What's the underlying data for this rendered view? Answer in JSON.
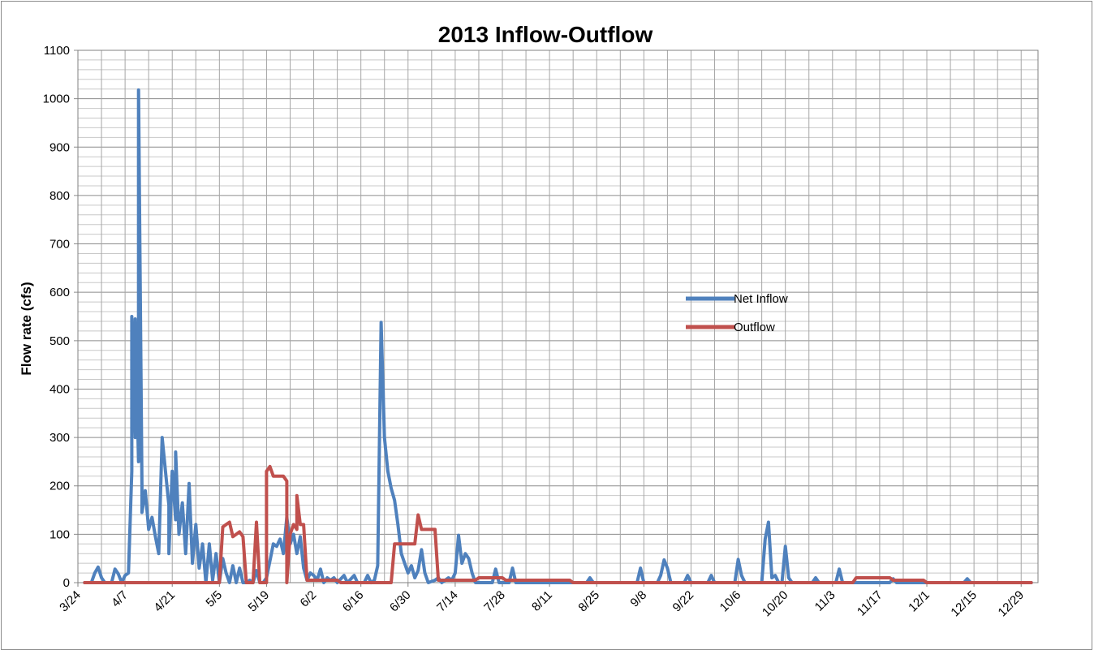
{
  "chart_data": {
    "type": "line",
    "title": "2013 Inflow-Outflow",
    "ylabel": "Flow rate (cfs)",
    "xlabel": "",
    "ylim": [
      0,
      1100
    ],
    "ytick_step": 100,
    "y_minor_step": 20,
    "xlim": [
      "2013-03-24",
      "2014-01-03"
    ],
    "x_ticks": [
      "3/24",
      "4/7",
      "4/21",
      "5/5",
      "5/19",
      "6/2",
      "6/16",
      "6/30",
      "7/14",
      "7/28",
      "8/11",
      "8/25",
      "9/8",
      "9/22",
      "10/6",
      "10/20",
      "11/3",
      "11/17",
      "12/1",
      "12/15",
      "12/29"
    ],
    "x_tick_dates": [
      "2013-03-24",
      "2013-04-07",
      "2013-04-21",
      "2013-05-05",
      "2013-05-19",
      "2013-06-02",
      "2013-06-16",
      "2013-06-30",
      "2013-07-14",
      "2013-07-28",
      "2013-08-11",
      "2013-08-25",
      "2013-09-08",
      "2013-09-22",
      "2013-10-06",
      "2013-10-20",
      "2013-11-03",
      "2013-11-17",
      "2013-12-01",
      "2013-12-15",
      "2013-12-29"
    ],
    "grid": true,
    "legend_position": "center-right",
    "series": [
      {
        "name": "Net Inflow",
        "color": "#4f81bd",
        "points": [
          [
            "2013-03-26",
            0
          ],
          [
            "2013-03-28",
            0
          ],
          [
            "2013-03-29",
            20
          ],
          [
            "2013-03-30",
            32
          ],
          [
            "2013-03-31",
            10
          ],
          [
            "2013-04-01",
            0
          ],
          [
            "2013-04-03",
            0
          ],
          [
            "2013-04-04",
            28
          ],
          [
            "2013-04-05",
            18
          ],
          [
            "2013-04-06",
            0
          ],
          [
            "2013-04-07",
            15
          ],
          [
            "2013-04-08",
            20
          ],
          [
            "2013-04-09",
            230
          ],
          [
            "2013-04-09",
            550
          ],
          [
            "2013-04-10",
            300
          ],
          [
            "2013-04-10",
            545
          ],
          [
            "2013-04-11",
            250
          ],
          [
            "2013-04-11",
            1018
          ],
          [
            "2013-04-12",
            200
          ],
          [
            "2013-04-12",
            145
          ],
          [
            "2013-04-13",
            190
          ],
          [
            "2013-04-14",
            110
          ],
          [
            "2013-04-15",
            135
          ],
          [
            "2013-04-16",
            95
          ],
          [
            "2013-04-17",
            60
          ],
          [
            "2013-04-18",
            300
          ],
          [
            "2013-04-19",
            230
          ],
          [
            "2013-04-20",
            160
          ],
          [
            "2013-04-20",
            60
          ],
          [
            "2013-04-21",
            230
          ],
          [
            "2013-04-22",
            130
          ],
          [
            "2013-04-22",
            270
          ],
          [
            "2013-04-23",
            100
          ],
          [
            "2013-04-24",
            165
          ],
          [
            "2013-04-25",
            60
          ],
          [
            "2013-04-26",
            205
          ],
          [
            "2013-04-27",
            40
          ],
          [
            "2013-04-28",
            120
          ],
          [
            "2013-04-29",
            30
          ],
          [
            "2013-04-30",
            80
          ],
          [
            "2013-05-01",
            0
          ],
          [
            "2013-05-02",
            80
          ],
          [
            "2013-05-03",
            5
          ],
          [
            "2013-05-04",
            60
          ],
          [
            "2013-05-05",
            0
          ],
          [
            "2013-05-06",
            50
          ],
          [
            "2013-05-07",
            20
          ],
          [
            "2013-05-08",
            0
          ],
          [
            "2013-05-09",
            35
          ],
          [
            "2013-05-10",
            0
          ],
          [
            "2013-05-11",
            30
          ],
          [
            "2013-05-12",
            0
          ],
          [
            "2013-05-13",
            0
          ],
          [
            "2013-05-14",
            5
          ],
          [
            "2013-05-15",
            0
          ],
          [
            "2013-05-16",
            25
          ],
          [
            "2013-05-17",
            0
          ],
          [
            "2013-05-18",
            0
          ],
          [
            "2013-05-19",
            10
          ],
          [
            "2013-05-20",
            45
          ],
          [
            "2013-05-21",
            80
          ],
          [
            "2013-05-22",
            75
          ],
          [
            "2013-05-23",
            90
          ],
          [
            "2013-05-24",
            60
          ],
          [
            "2013-05-25",
            135
          ],
          [
            "2013-05-26",
            80
          ],
          [
            "2013-05-27",
            100
          ],
          [
            "2013-05-28",
            60
          ],
          [
            "2013-05-29",
            95
          ],
          [
            "2013-05-30",
            30
          ],
          [
            "2013-05-31",
            5
          ],
          [
            "2013-06-01",
            20
          ],
          [
            "2013-06-02",
            15
          ],
          [
            "2013-06-03",
            5
          ],
          [
            "2013-06-04",
            28
          ],
          [
            "2013-06-05",
            0
          ],
          [
            "2013-06-06",
            10
          ],
          [
            "2013-06-07",
            5
          ],
          [
            "2013-06-08",
            10
          ],
          [
            "2013-06-09",
            0
          ],
          [
            "2013-06-11",
            15
          ],
          [
            "2013-06-12",
            0
          ],
          [
            "2013-06-14",
            15
          ],
          [
            "2013-06-15",
            0
          ],
          [
            "2013-06-17",
            0
          ],
          [
            "2013-06-18",
            15
          ],
          [
            "2013-06-19",
            0
          ],
          [
            "2013-06-20",
            5
          ],
          [
            "2013-06-21",
            35
          ],
          [
            "2013-06-22",
            538
          ],
          [
            "2013-06-23",
            300
          ],
          [
            "2013-06-24",
            230
          ],
          [
            "2013-06-25",
            195
          ],
          [
            "2013-06-26",
            170
          ],
          [
            "2013-06-27",
            120
          ],
          [
            "2013-06-28",
            60
          ],
          [
            "2013-06-29",
            40
          ],
          [
            "2013-06-30",
            20
          ],
          [
            "2013-07-01",
            35
          ],
          [
            "2013-07-02",
            10
          ],
          [
            "2013-07-03",
            25
          ],
          [
            "2013-07-04",
            68
          ],
          [
            "2013-07-05",
            20
          ],
          [
            "2013-07-06",
            0
          ],
          [
            "2013-07-08",
            5
          ],
          [
            "2013-07-09",
            10
          ],
          [
            "2013-07-10",
            0
          ],
          [
            "2013-07-12",
            10
          ],
          [
            "2013-07-13",
            5
          ],
          [
            "2013-07-14",
            20
          ],
          [
            "2013-07-15",
            98
          ],
          [
            "2013-07-16",
            40
          ],
          [
            "2013-07-17",
            60
          ],
          [
            "2013-07-18",
            50
          ],
          [
            "2013-07-19",
            20
          ],
          [
            "2013-07-20",
            0
          ],
          [
            "2013-07-25",
            0
          ],
          [
            "2013-07-26",
            28
          ],
          [
            "2013-07-27",
            0
          ],
          [
            "2013-07-30",
            0
          ],
          [
            "2013-07-31",
            30
          ],
          [
            "2013-08-01",
            0
          ],
          [
            "2013-08-22",
            0
          ],
          [
            "2013-08-23",
            10
          ],
          [
            "2013-08-24",
            0
          ],
          [
            "2013-09-06",
            0
          ],
          [
            "2013-09-07",
            30
          ],
          [
            "2013-09-08",
            0
          ],
          [
            "2013-09-12",
            0
          ],
          [
            "2013-09-13",
            15
          ],
          [
            "2013-09-14",
            47
          ],
          [
            "2013-09-15",
            30
          ],
          [
            "2013-09-16",
            0
          ],
          [
            "2013-09-20",
            0
          ],
          [
            "2013-09-21",
            15
          ],
          [
            "2013-09-22",
            0
          ],
          [
            "2013-09-27",
            0
          ],
          [
            "2013-09-28",
            15
          ],
          [
            "2013-09-29",
            0
          ],
          [
            "2013-10-05",
            0
          ],
          [
            "2013-10-06",
            48
          ],
          [
            "2013-10-07",
            15
          ],
          [
            "2013-10-08",
            0
          ],
          [
            "2013-10-13",
            0
          ],
          [
            "2013-10-14",
            90
          ],
          [
            "2013-10-15",
            125
          ],
          [
            "2013-10-16",
            10
          ],
          [
            "2013-10-17",
            15
          ],
          [
            "2013-10-18",
            0
          ],
          [
            "2013-10-19",
            0
          ],
          [
            "2013-10-20",
            75
          ],
          [
            "2013-10-21",
            10
          ],
          [
            "2013-10-22",
            0
          ],
          [
            "2013-10-28",
            0
          ],
          [
            "2013-10-29",
            10
          ],
          [
            "2013-10-30",
            0
          ],
          [
            "2013-11-04",
            0
          ],
          [
            "2013-11-05",
            28
          ],
          [
            "2013-11-06",
            0
          ],
          [
            "2013-11-20",
            0
          ],
          [
            "2013-11-21",
            8
          ],
          [
            "2013-11-22",
            0
          ],
          [
            "2013-12-12",
            0
          ],
          [
            "2013-12-13",
            8
          ],
          [
            "2013-12-14",
            0
          ],
          [
            "2014-01-01",
            0
          ]
        ]
      },
      {
        "name": "Outflow",
        "color": "#c0504d",
        "points": [
          [
            "2013-03-26",
            0
          ],
          [
            "2013-05-05",
            0
          ],
          [
            "2013-05-06",
            115
          ],
          [
            "2013-05-07",
            120
          ],
          [
            "2013-05-08",
            125
          ],
          [
            "2013-05-09",
            95
          ],
          [
            "2013-05-10",
            100
          ],
          [
            "2013-05-11",
            105
          ],
          [
            "2013-05-12",
            95
          ],
          [
            "2013-05-13",
            0
          ],
          [
            "2013-05-15",
            0
          ],
          [
            "2013-05-16",
            125
          ],
          [
            "2013-05-17",
            0
          ],
          [
            "2013-05-19",
            0
          ],
          [
            "2013-05-19",
            230
          ],
          [
            "2013-05-20",
            240
          ],
          [
            "2013-05-21",
            220
          ],
          [
            "2013-05-24",
            220
          ],
          [
            "2013-05-25",
            210
          ],
          [
            "2013-05-25",
            0
          ],
          [
            "2013-05-26",
            100
          ],
          [
            "2013-05-27",
            120
          ],
          [
            "2013-05-28",
            110
          ],
          [
            "2013-05-28",
            180
          ],
          [
            "2013-05-29",
            120
          ],
          [
            "2013-05-30",
            120
          ],
          [
            "2013-05-31",
            5
          ],
          [
            "2013-06-09",
            5
          ],
          [
            "2013-06-10",
            0
          ],
          [
            "2013-06-25",
            0
          ],
          [
            "2013-06-26",
            80
          ],
          [
            "2013-07-02",
            80
          ],
          [
            "2013-07-03",
            140
          ],
          [
            "2013-07-04",
            110
          ],
          [
            "2013-07-08",
            110
          ],
          [
            "2013-07-09",
            5
          ],
          [
            "2013-07-20",
            5
          ],
          [
            "2013-07-21",
            10
          ],
          [
            "2013-07-28",
            10
          ],
          [
            "2013-07-29",
            5
          ],
          [
            "2013-08-17",
            5
          ],
          [
            "2013-08-18",
            0
          ],
          [
            "2013-11-09",
            0
          ],
          [
            "2013-11-10",
            10
          ],
          [
            "2013-11-20",
            10
          ],
          [
            "2013-11-21",
            5
          ],
          [
            "2013-11-30",
            5
          ],
          [
            "2013-12-01",
            0
          ],
          [
            "2014-01-01",
            0
          ]
        ]
      }
    ]
  }
}
